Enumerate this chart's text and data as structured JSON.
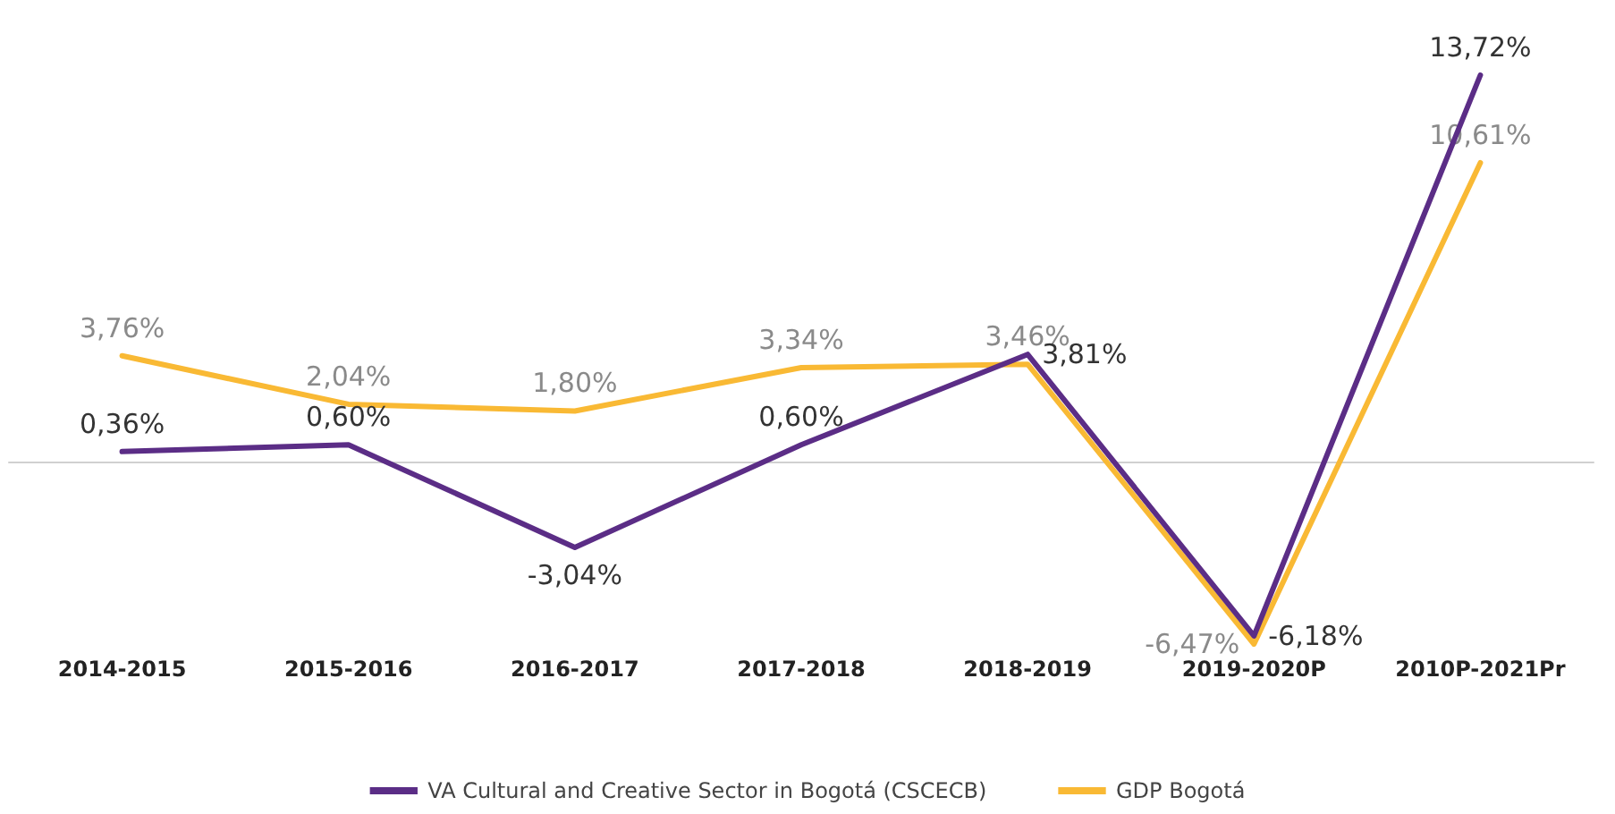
{
  "chart_data": {
    "type": "line",
    "categories": [
      "2014-2015",
      "2015-2016",
      "2016-2017",
      "2017-2018",
      "2018-2019",
      "2019-2020P",
      "2010P-2021Pr"
    ],
    "series": [
      {
        "name": "VA Cultural and Creative Sector in Bogotá (CSCECB)",
        "color": "#5b2d86",
        "values": [
          0.36,
          0.6,
          -3.04,
          0.6,
          3.81,
          -6.18,
          13.72
        ],
        "value_labels": [
          "0,36%",
          "0,60%",
          "-3,04%",
          "0,60%",
          "3,81%",
          "-6,18%",
          "13,72%"
        ]
      },
      {
        "name": "GDP Bogotá",
        "color": "#f9b934",
        "values": [
          3.76,
          2.04,
          1.8,
          3.34,
          3.46,
          -6.47,
          10.61
        ],
        "value_labels": [
          "3,76%",
          "2,04%",
          "1,80%",
          "3,34%",
          "3,46%",
          "-6,47%",
          "10,61%"
        ]
      }
    ],
    "legend": "bottom",
    "grid": false,
    "marker": "none",
    "line_style": "solid"
  }
}
